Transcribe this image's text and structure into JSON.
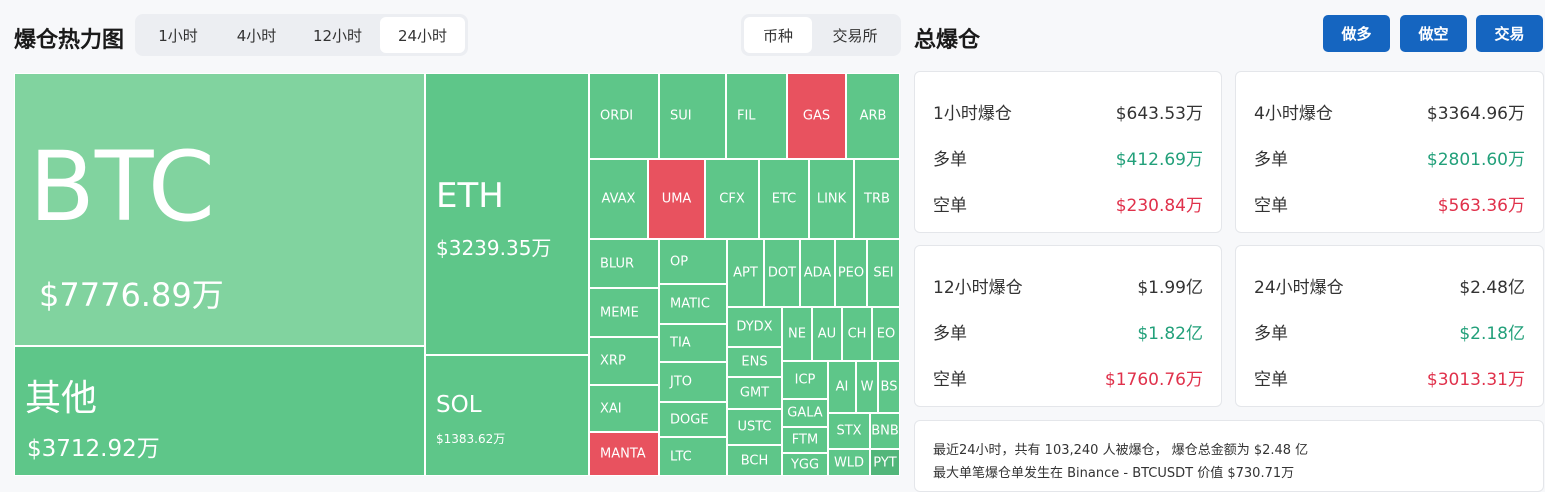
{
  "heatmap": {
    "title": "爆仓热力图",
    "time_tabs": [
      "1小时",
      "4小时",
      "12小时",
      "24小时"
    ],
    "active_time_tab": "24小时",
    "group_tabs": [
      "币种",
      "交易所"
    ],
    "active_group_tab": "币种",
    "btc": {
      "symbol": "BTC",
      "value": "$7776.89万"
    },
    "eth": {
      "symbol": "ETH",
      "value": "$3239.35万"
    },
    "other": {
      "symbol": "其他",
      "value": "$3712.92万"
    },
    "sol": {
      "symbol": "SOL",
      "value": "$1383.62万"
    },
    "small": [
      "ORDI",
      "SUI",
      "FIL",
      "GAS",
      "ARB",
      "AVAX",
      "UMA",
      "CFX",
      "ETC",
      "LINK",
      "TRB",
      "BLUR",
      "OP",
      "APT",
      "DOT",
      "ADA",
      "PEO",
      "SEI",
      "MATIC",
      "MEME",
      "DYDX",
      "NE",
      "AU",
      "CH",
      "EO",
      "TIA",
      "XRP",
      "ENS",
      "ICP",
      "AI",
      "W",
      "BS",
      "JTO",
      "GMT",
      "GALA",
      "XAI",
      "DOGE",
      "USTC",
      "FTM",
      "STX",
      "BNB",
      "MANTA",
      "LTC",
      "BCH",
      "YGG",
      "WLD",
      "PYT"
    ],
    "colors": {
      "green": "#5ec689",
      "light_green": "#81d39f",
      "red": "#e8525f",
      "dark_green": "#52b67a"
    }
  },
  "totals": {
    "title": "总爆仓",
    "buttons": [
      "做多",
      "做空",
      "交易"
    ],
    "cards": [
      {
        "label": "1小时爆仓",
        "total": "$643.53万",
        "long_label": "多单",
        "long": "$412.69万",
        "short_label": "空单",
        "short": "$230.84万"
      },
      {
        "label": "4小时爆仓",
        "total": "$3364.96万",
        "long_label": "多单",
        "long": "$2801.60万",
        "short_label": "空单",
        "short": "$563.36万"
      },
      {
        "label": "12小时爆仓",
        "total": "$1.99亿",
        "long_label": "多单",
        "long": "$1.82亿",
        "short_label": "空单",
        "short": "$1760.76万"
      },
      {
        "label": "24小时爆仓",
        "total": "$2.48亿",
        "long_label": "多单",
        "long": "$2.18亿",
        "short_label": "空单",
        "short": "$3013.31万"
      }
    ],
    "summary_line1": "最近24小时，共有 103,240 人被爆仓，  爆仓总金额为 $2.48 亿",
    "summary_line2": "最大单笔爆仓单发生在 Binance - BTCUSDT 价值 $730.71万"
  }
}
